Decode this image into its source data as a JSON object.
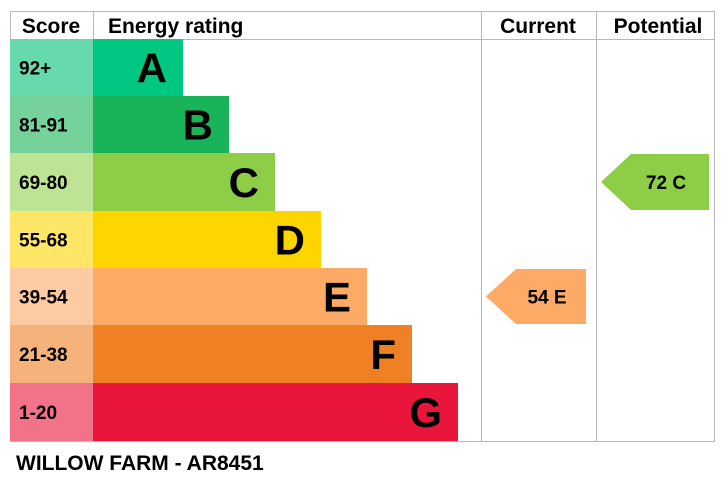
{
  "chart_data": {
    "type": "bar",
    "headers": {
      "score": "Score",
      "rating": "Energy rating",
      "current": "Current",
      "potential": "Potential"
    },
    "bands": [
      {
        "range": "92+",
        "letter": "A",
        "min": 92,
        "max": 100,
        "color": "#00c781",
        "score_color": "#66d9ad"
      },
      {
        "range": "81-91",
        "letter": "B",
        "min": 81,
        "max": 91,
        "color": "#19b459",
        "score_color": "#75d29a"
      },
      {
        "range": "69-80",
        "letter": "C",
        "min": 69,
        "max": 80,
        "color": "#8dce46",
        "score_color": "#bce494"
      },
      {
        "range": "55-68",
        "letter": "D",
        "min": 55,
        "max": 68,
        "color": "#ffd500",
        "score_color": "#ffe666"
      },
      {
        "range": "39-54",
        "letter": "E",
        "min": 39,
        "max": 54,
        "color": "#fcaa65",
        "score_color": "#fdcba3"
      },
      {
        "range": "21-38",
        "letter": "F",
        "min": 21,
        "max": 38,
        "color": "#ef8023",
        "score_color": "#f5b37b"
      },
      {
        "range": "1-20",
        "letter": "G",
        "min": 1,
        "max": 20,
        "color": "#e9153b",
        "score_color": "#f27389"
      }
    ],
    "current": {
      "value": 54,
      "letter": "E",
      "color": "#fcaa65"
    },
    "potential": {
      "value": 72,
      "letter": "C",
      "color": "#8dce46"
    }
  },
  "footer": {
    "property": "WILLOW FARM - AR8451"
  }
}
